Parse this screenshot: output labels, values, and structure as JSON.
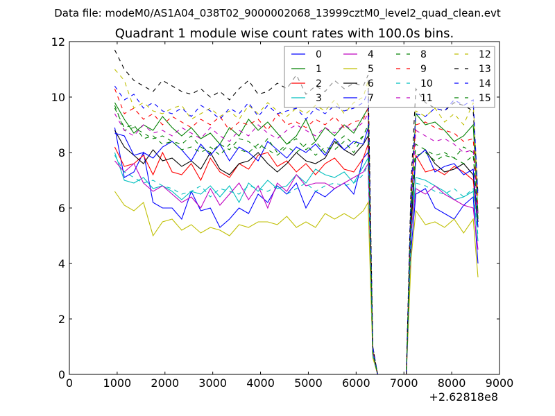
{
  "chart_data": {
    "type": "line",
    "suptitle": "Data file: modeM0/AS1A04_038T02_9000002068_13999cztM0_level2_quad_clean.evt",
    "title": "Quadrant 1 module wise count rates with 100.0s bins.",
    "xlabel": "",
    "ylabel": "",
    "x_offset_text": "+2.62818e8",
    "xlim": [
      0,
      9000
    ],
    "ylim": [
      0,
      12
    ],
    "xticks": [
      0,
      1000,
      2000,
      3000,
      4000,
      5000,
      6000,
      7000,
      8000,
      9000
    ],
    "yticks": [
      0,
      2,
      4,
      6,
      8,
      10,
      12
    ],
    "grid": false,
    "legend_placement": "top-right",
    "legend_columns": 4,
    "x": [
      950,
      1150,
      1350,
      1550,
      1750,
      1950,
      2150,
      2350,
      2550,
      2750,
      2950,
      3150,
      3350,
      3550,
      3750,
      3950,
      4150,
      4350,
      4550,
      4750,
      4950,
      5150,
      5350,
      5550,
      5750,
      5950,
      6150,
      6250,
      6350,
      6450,
      7050,
      7150,
      7250,
      7450,
      7650,
      7850,
      8050,
      8250,
      8450,
      8550
    ],
    "series": [
      {
        "name": "0",
        "color": "#0000ff",
        "dash": false,
        "values": [
          8.9,
          7.1,
          7.3,
          8.0,
          6.2,
          6.0,
          6.0,
          5.6,
          6.6,
          5.9,
          6.0,
          5.3,
          5.6,
          6.0,
          5.8,
          6.5,
          6.2,
          6.8,
          6.5,
          6.9,
          6.0,
          6.6,
          6.4,
          6.7,
          6.9,
          6.5,
          7.8,
          8.0,
          0.7,
          0,
          0,
          4.5,
          6.5,
          6.7,
          6.0,
          5.8,
          5.6,
          6.1,
          6.4,
          4.0
        ]
      },
      {
        "name": "1",
        "color": "#008000",
        "dash": false,
        "values": [
          9.8,
          9.2,
          8.7,
          9.0,
          8.8,
          9.3,
          8.9,
          8.6,
          8.9,
          8.5,
          8.7,
          8.3,
          8.9,
          8.6,
          9.2,
          8.8,
          9.1,
          8.7,
          8.3,
          8.6,
          9.2,
          8.4,
          8.9,
          8.6,
          9.0,
          8.7,
          9.3,
          9.6,
          0.8,
          0,
          0,
          6.0,
          9.4,
          9.0,
          9.1,
          8.8,
          8.4,
          8.6,
          9.0,
          5.8
        ]
      },
      {
        "name": "2",
        "color": "#ff0000",
        "dash": false,
        "values": [
          8.2,
          7.5,
          7.6,
          7.9,
          7.2,
          8.0,
          7.3,
          7.2,
          7.6,
          7.0,
          7.8,
          7.3,
          7.1,
          7.6,
          7.4,
          7.9,
          8.0,
          7.5,
          7.7,
          7.3,
          7.6,
          7.2,
          7.6,
          7.8,
          7.4,
          7.3,
          7.8,
          8.3,
          0.7,
          0,
          0,
          5.3,
          7.9,
          7.3,
          7.4,
          7.2,
          7.5,
          7.3,
          7.0,
          5.3
        ]
      },
      {
        "name": "3",
        "color": "#00bfbf",
        "dash": false,
        "values": [
          8.0,
          7.0,
          6.9,
          7.1,
          6.7,
          6.8,
          6.6,
          6.3,
          6.6,
          6.5,
          6.8,
          6.4,
          6.8,
          6.2,
          6.9,
          6.6,
          7.0,
          6.7,
          6.8,
          7.2,
          6.9,
          7.4,
          7.2,
          7.1,
          7.3,
          6.9,
          7.5,
          7.8,
          0.7,
          0,
          0,
          5.0,
          7.1,
          7.0,
          6.8,
          6.6,
          6.3,
          6.4,
          6.6,
          4.8
        ]
      },
      {
        "name": "4",
        "color": "#bf00bf",
        "dash": false,
        "values": [
          7.7,
          7.3,
          7.6,
          6.9,
          6.6,
          6.8,
          6.5,
          6.2,
          6.4,
          6.0,
          6.7,
          6.1,
          6.5,
          6.9,
          6.3,
          6.8,
          6.0,
          6.9,
          6.6,
          7.2,
          6.8,
          6.9,
          6.9,
          6.7,
          6.9,
          7.1,
          7.3,
          7.6,
          0.7,
          0,
          0,
          5.1,
          6.7,
          6.5,
          6.8,
          6.5,
          6.3,
          6.1,
          6.0,
          4.5
        ]
      },
      {
        "name": "5",
        "color": "#bfbf00",
        "dash": false,
        "values": [
          6.6,
          6.1,
          5.9,
          6.2,
          5.0,
          5.5,
          5.6,
          5.2,
          5.4,
          5.1,
          5.3,
          5.2,
          5.0,
          5.4,
          5.3,
          5.5,
          5.5,
          5.4,
          5.7,
          5.3,
          5.5,
          5.3,
          5.8,
          5.6,
          5.8,
          5.6,
          5.9,
          6.2,
          0.6,
          0,
          0,
          4.2,
          5.9,
          5.4,
          5.5,
          5.3,
          5.6,
          5.1,
          5.6,
          3.5
        ]
      },
      {
        "name": "6",
        "color": "#000000",
        "dash": false,
        "values": [
          8.8,
          8.2,
          7.9,
          7.6,
          8.1,
          7.7,
          7.8,
          7.5,
          7.7,
          7.4,
          8.0,
          7.4,
          7.2,
          7.6,
          7.7,
          8.0,
          7.6,
          7.3,
          7.6,
          8.0,
          7.7,
          7.6,
          7.8,
          8.4,
          8.1,
          7.9,
          8.3,
          8.6,
          0.8,
          0,
          0,
          5.5,
          7.8,
          8.1,
          7.6,
          7.3,
          7.4,
          7.6,
          7.2,
          5.5
        ]
      },
      {
        "name": "7",
        "color": "#0000ff",
        "dash": false,
        "values": [
          8.7,
          8.6,
          7.9,
          8.0,
          7.8,
          8.2,
          8.4,
          8.1,
          7.7,
          8.3,
          7.9,
          8.3,
          7.7,
          8.2,
          8.0,
          7.7,
          8.4,
          8.1,
          7.8,
          8.2,
          8.0,
          8.3,
          7.9,
          8.5,
          8.1,
          8.4,
          8.3,
          8.9,
          0.8,
          0,
          0,
          5.8,
          7.8,
          8.1,
          7.3,
          7.5,
          7.6,
          7.2,
          7.4,
          5.3
        ]
      },
      {
        "name": "8",
        "color": "#008000",
        "dash": true,
        "values": [
          9.7,
          8.8,
          8.9,
          8.7,
          8.5,
          8.6,
          8.4,
          8.3,
          8.6,
          8.2,
          8.0,
          8.3,
          8.1,
          8.5,
          8.4,
          8.1,
          8.5,
          8.0,
          8.3,
          8.5,
          8.1,
          8.4,
          8.0,
          8.3,
          8.6,
          8.3,
          8.6,
          9.0,
          0.8,
          0,
          0,
          5.8,
          7.9,
          8.0,
          7.7,
          7.9,
          7.8,
          7.6,
          7.9,
          5.6
        ]
      },
      {
        "name": "9",
        "color": "#ff0000",
        "dash": true,
        "values": [
          10.3,
          9.4,
          9.6,
          9.2,
          9.4,
          9.0,
          9.3,
          9.1,
          8.9,
          9.2,
          9.0,
          9.3,
          8.8,
          9.1,
          9.0,
          9.2,
          8.8,
          9.4,
          9.0,
          9.1,
          8.9,
          9.2,
          9.0,
          9.3,
          8.9,
          9.1,
          9.2,
          9.6,
          0.9,
          0,
          0,
          6.5,
          9.0,
          9.1,
          8.9,
          8.8,
          8.7,
          8.4,
          8.5,
          6.0
        ]
      },
      {
        "name": "10",
        "color": "#00bfbf",
        "dash": true,
        "values": [
          7.9,
          7.3,
          7.1,
          6.9,
          7.0,
          6.8,
          6.7,
          6.5,
          6.6,
          6.8,
          6.4,
          6.7,
          6.6,
          6.5,
          6.8,
          6.7,
          6.6,
          6.8,
          6.5,
          6.7,
          6.9,
          6.6,
          6.8,
          6.9,
          6.8,
          6.9,
          7.2,
          7.6,
          0.7,
          0,
          0,
          5.2,
          6.9,
          6.8,
          6.6,
          6.5,
          6.7,
          6.4,
          6.7,
          5.0
        ]
      },
      {
        "name": "11",
        "color": "#bf00bf",
        "dash": true,
        "values": [
          9.4,
          8.8,
          8.6,
          9.0,
          8.7,
          8.8,
          8.6,
          8.9,
          8.7,
          8.5,
          8.9,
          8.6,
          8.4,
          8.8,
          8.6,
          9.0,
          8.7,
          8.5,
          8.8,
          9.0,
          8.8,
          8.6,
          8.9,
          8.7,
          9.0,
          8.8,
          9.1,
          9.4,
          0.9,
          0,
          0,
          6.2,
          8.8,
          8.6,
          8.4,
          8.5,
          8.3,
          8.0,
          8.1,
          5.8
        ]
      },
      {
        "name": "12",
        "color": "#bfbf00",
        "dash": true,
        "values": [
          11.0,
          10.6,
          9.6,
          9.8,
          9.5,
          9.4,
          9.6,
          9.7,
          9.2,
          9.4,
          9.6,
          9.3,
          9.5,
          9.2,
          9.7,
          9.4,
          9.8,
          9.5,
          9.3,
          9.6,
          9.4,
          9.7,
          9.5,
          9.9,
          9.4,
          9.8,
          10.0,
          10.6,
          1.0,
          0,
          0,
          6.8,
          9.5,
          9.3,
          9.6,
          9.1,
          9.4,
          9.0,
          9.8,
          6.3
        ]
      },
      {
        "name": "13",
        "color": "#000000",
        "dash": true,
        "values": [
          11.7,
          11.0,
          10.6,
          10.4,
          10.2,
          10.6,
          10.4,
          10.2,
          10.1,
          10.3,
          10.0,
          10.2,
          9.9,
          10.3,
          10.6,
          10.1,
          10.2,
          10.5,
          10.3,
          10.8,
          10.1,
          10.4,
          10.2,
          10.6,
          10.3,
          10.5,
          10.4,
          10.8,
          1.0,
          0,
          0,
          7.0,
          10.3,
          9.8,
          9.6,
          9.5,
          9.8,
          9.7,
          9.5,
          6.5
        ]
      },
      {
        "name": "14",
        "color": "#0000ff",
        "dash": true,
        "values": [
          10.4,
          9.9,
          10.1,
          9.6,
          9.8,
          9.5,
          9.4,
          9.6,
          9.3,
          9.7,
          9.5,
          9.2,
          9.6,
          9.4,
          9.8,
          9.3,
          9.7,
          9.4,
          9.5,
          9.6,
          9.2,
          9.6,
          9.4,
          9.7,
          9.5,
          9.6,
          9.8,
          10.2,
          1.0,
          0,
          0,
          6.7,
          9.4,
          9.3,
          9.6,
          9.5,
          9.9,
          9.7,
          9.9,
          6.4
        ]
      },
      {
        "name": "15",
        "color": "#008000",
        "dash": true,
        "values": [
          9.6,
          8.9,
          9.0,
          8.5,
          8.6,
          8.3,
          8.4,
          8.1,
          8.2,
          8.0,
          8.2,
          7.9,
          8.3,
          8.1,
          8.0,
          8.3,
          8.1,
          7.9,
          8.2,
          8.0,
          8.3,
          7.9,
          8.2,
          8.1,
          8.4,
          8.0,
          8.6,
          9.0,
          0.8,
          0,
          0,
          6.0,
          8.3,
          8.1,
          7.9,
          8.0,
          7.8,
          8.2,
          8.0,
          5.6
        ]
      }
    ]
  }
}
